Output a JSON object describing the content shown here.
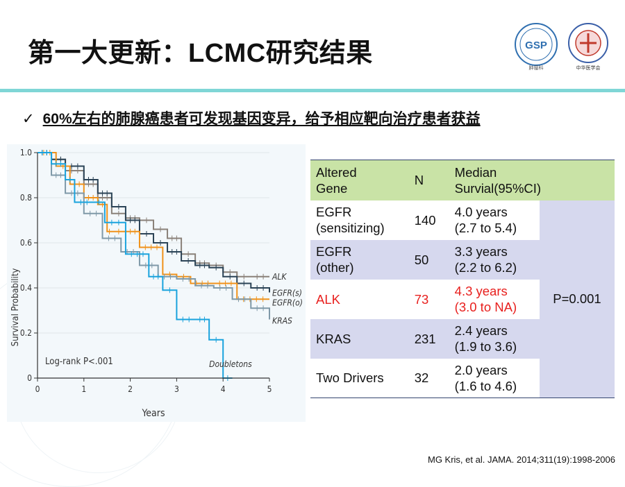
{
  "slide": {
    "title": "第一大更新：LCMC研究结果",
    "bullet_mark": "✓",
    "bullet": "60%左右的肺腺癌患者可发现基因变异，给予相应靶向治疗患者获益",
    "citation": "MG Kris, et al. JAMA. 2014;311(19):1998-2006"
  },
  "logos": [
    {
      "name": "gsp-logo",
      "caption": "肿瘤科",
      "color": "#2f6fb0"
    },
    {
      "name": "cma-logo",
      "caption": "中华医学会",
      "color": "#3a5fa8"
    }
  ],
  "table": {
    "headers": [
      "Altered\nGene",
      "N",
      "Median\nSurvial(95%CI)"
    ],
    "rows": [
      {
        "gene": "EGFR\n(sensitizing)",
        "n": "140",
        "median": "4.0 years\n(2.7 to 5.4)",
        "highlight": false
      },
      {
        "gene": "EGFR\n(other)",
        "n": "50",
        "median": "3.3 years\n(2.2 to 6.2)",
        "highlight": false
      },
      {
        "gene": "ALK",
        "n": "73",
        "median": "4.3 years\n(3.0 to NA)",
        "highlight": true
      },
      {
        "gene": "KRAS",
        "n": "231",
        "median": "2.4 years\n(1.9 to 3.6)",
        "highlight": false
      },
      {
        "gene": "Two Drivers",
        "n": "32",
        "median": "2.0 years\n(1.6 to 4.6)",
        "highlight": false
      }
    ],
    "p_value": "P=0.001",
    "highlight_color": "#e8201e"
  },
  "chart_data": {
    "type": "line",
    "xlabel": "Years",
    "ylabel": "Survival Probability",
    "xlim": [
      0,
      5
    ],
    "ylim": [
      0,
      1.0
    ],
    "xticks": [
      "0",
      "1",
      "2",
      "3",
      "4",
      "5"
    ],
    "yticks": [
      "0",
      "0.2",
      "0.4",
      "0.6",
      "0.8",
      "1.0"
    ],
    "annotation": "Log-rank P<.001",
    "series": [
      {
        "name": "ALK",
        "color": "#8a8179",
        "x": [
          0,
          0.3,
          0.6,
          1.0,
          1.3,
          1.6,
          1.9,
          2.2,
          2.5,
          2.8,
          3.1,
          3.4,
          3.7,
          4.0,
          4.3,
          4.6,
          5.0
        ],
        "y": [
          1.0,
          0.97,
          0.92,
          0.86,
          0.8,
          0.73,
          0.71,
          0.7,
          0.66,
          0.62,
          0.55,
          0.51,
          0.5,
          0.47,
          0.45,
          0.45,
          0.45
        ]
      },
      {
        "name": "EGFR(s)",
        "color": "#2b4356",
        "x": [
          0,
          0.3,
          0.6,
          1.0,
          1.3,
          1.6,
          1.9,
          2.2,
          2.5,
          2.8,
          3.1,
          3.4,
          3.7,
          4.0,
          4.3,
          4.6,
          5.0
        ],
        "y": [
          1.0,
          0.97,
          0.94,
          0.88,
          0.82,
          0.76,
          0.7,
          0.64,
          0.6,
          0.56,
          0.52,
          0.5,
          0.49,
          0.45,
          0.42,
          0.4,
          0.38
        ]
      },
      {
        "name": "EGFR(o)",
        "color": "#f0921a",
        "x": [
          0,
          0.4,
          0.7,
          1.0,
          1.3,
          1.5,
          1.6,
          1.9,
          2.2,
          2.7,
          3.0,
          3.3,
          3.8,
          4.3,
          5.0
        ],
        "y": [
          1.0,
          0.94,
          0.86,
          0.8,
          0.77,
          0.65,
          0.65,
          0.65,
          0.58,
          0.46,
          0.45,
          0.42,
          0.42,
          0.35,
          0.35
        ]
      },
      {
        "name": "KRAS",
        "color": "#7f99a8",
        "x": [
          0,
          0.3,
          0.6,
          1.0,
          1.4,
          1.8,
          2.2,
          2.6,
          3.0,
          3.4,
          3.8,
          4.2,
          4.6,
          5.0
        ],
        "y": [
          1.0,
          0.9,
          0.82,
          0.73,
          0.62,
          0.56,
          0.5,
          0.45,
          0.44,
          0.41,
          0.4,
          0.35,
          0.31,
          0.26
        ]
      },
      {
        "name": "Doubletons",
        "color": "#1aa3dd",
        "x": [
          0,
          0.3,
          0.6,
          0.8,
          1.2,
          1.45,
          1.9,
          2.4,
          2.7,
          3.0,
          3.4,
          3.7,
          4.0,
          4.2
        ],
        "y": [
          1.0,
          0.95,
          0.88,
          0.78,
          0.78,
          0.69,
          0.55,
          0.45,
          0.39,
          0.26,
          0.26,
          0.17,
          0.0,
          0.0
        ]
      }
    ],
    "series_labels": [
      "ALK",
      "EGFR(s)",
      "EGFR(o)",
      "KRAS",
      "Doubletons"
    ]
  }
}
